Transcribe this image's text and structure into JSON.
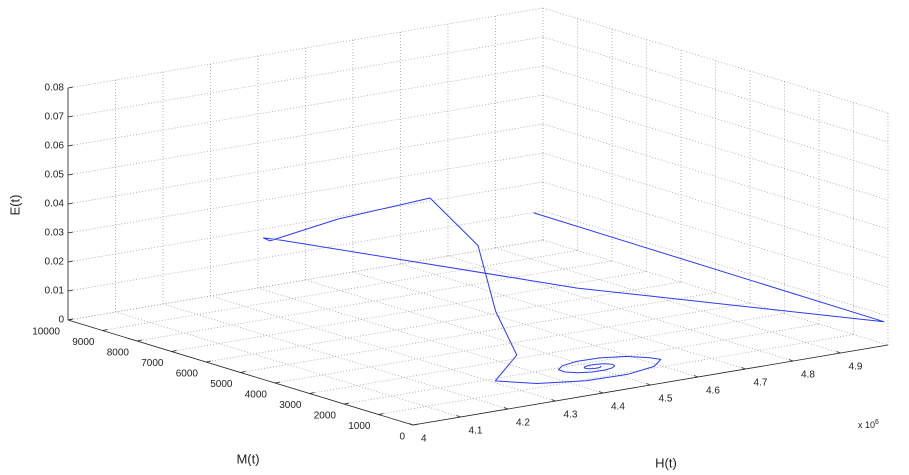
{
  "chart_data": {
    "type": "line3d",
    "xlabel": "H(t)",
    "ylabel": "M(t)",
    "zlabel": "E(t)",
    "x_multiplier": {
      "base": "x 10",
      "exponent": "6"
    },
    "xlim": [
      4,
      5
    ],
    "ylim": [
      0,
      10000
    ],
    "zlim": [
      0,
      0.08
    ],
    "xticks": [
      4,
      4.1,
      4.2,
      4.3,
      4.4,
      4.5,
      4.6,
      4.7,
      4.8,
      4.9
    ],
    "yticks": [
      0,
      1000,
      2000,
      3000,
      4000,
      5000,
      6000,
      7000,
      8000,
      9000,
      10000
    ],
    "zticks": [
      0,
      0.01,
      0.02,
      0.03,
      0.04,
      0.05,
      0.06,
      0.07,
      0.08
    ],
    "grid": true,
    "series": [
      {
        "color": "#2b3cf0",
        "x": [
          4.85,
          4.995,
          4.6,
          4.256,
          4.23,
          4.245,
          4.35,
          4.453,
          4.5,
          4.45,
          4.4,
          4.282,
          4.327,
          4.406,
          4.492,
          4.562,
          4.602,
          4.607,
          4.582,
          4.539,
          4.492,
          4.453,
          4.431,
          4.429,
          4.442,
          4.466,
          4.492,
          4.513,
          4.525,
          4.527,
          4.519,
          4.506,
          4.492,
          4.48,
          4.474,
          4.473,
          4.477,
          4.484,
          4.492,
          4.498,
          4.502,
          4.503
        ],
        "y": [
          8200,
          50,
          3500,
          7380,
          7500,
          7520,
          7000,
          5740,
          5000,
          3800,
          2500,
          1500,
          912,
          578,
          537,
          746,
          1105,
          1500,
          1823,
          2005,
          2029,
          1914,
          1716,
          1500,
          1323,
          1222,
          1210,
          1273,
          1381,
          1500,
          1598,
          1652,
          1659,
          1625,
          1565,
          1500,
          1447,
          1417,
          1413,
          1431,
          1464,
          1500
        ],
        "z": [
          0.02,
          0.008,
          0.018,
          0.03,
          0.031,
          0.0295,
          0.036,
          0.045,
          0.03,
          0.013,
          0.004,
          0.002,
          0.002,
          0.002,
          0.002,
          0.002,
          0.002,
          0.001,
          0.001,
          0.001,
          0.001,
          0.001,
          0.001,
          0.001,
          0.001,
          0.001,
          0.001,
          0.001,
          0.001,
          0.001,
          0.001,
          0.001,
          0.001,
          0.001,
          0.001,
          0.001,
          0.001,
          0.001,
          0.001,
          0.001,
          0.001,
          0.001
        ]
      }
    ]
  }
}
